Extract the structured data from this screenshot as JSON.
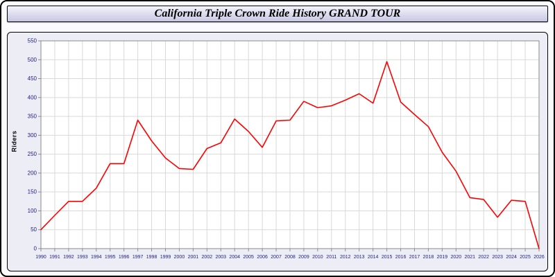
{
  "header": {
    "title": "California Triple Crown Ride History GRAND TOUR"
  },
  "chart_data": {
    "type": "line",
    "title": "California Triple Crown Ride History GRAND TOUR",
    "xlabel": "",
    "ylabel": "Riders",
    "ylim": [
      0,
      550
    ],
    "ytick_step": 50,
    "grid": true,
    "legend": "none",
    "line_color": "#ff0000",
    "grid_color": "#d9d9d9",
    "axis_color": "#8a8a8a",
    "tick_label_color": "#202080",
    "plot_bg": "#ffffff",
    "categories": [
      "1990",
      "1991",
      "1992",
      "1993",
      "1994",
      "1995",
      "1996",
      "1997",
      "1998",
      "1999",
      "2000",
      "2001",
      "2002",
      "2003",
      "2004",
      "2005",
      "2006",
      "2007",
      "2008",
      "2009",
      "2010",
      "2011",
      "2012",
      "2013",
      "2014",
      "2015",
      "2016",
      "2017",
      "2018",
      "2019",
      "2020",
      "2021",
      "2022",
      "2023",
      "2024",
      "2025",
      "2026"
    ],
    "series": [
      {
        "name": "Riders",
        "values": [
          50,
          88,
          125,
          125,
          160,
          225,
          225,
          340,
          285,
          240,
          212,
          210,
          265,
          280,
          343,
          310,
          268,
          338,
          340,
          390,
          373,
          378,
          393,
          410,
          385,
          495,
          388,
          355,
          323,
          255,
          205,
          135,
          130,
          83,
          128,
          125,
          0
        ]
      }
    ]
  }
}
